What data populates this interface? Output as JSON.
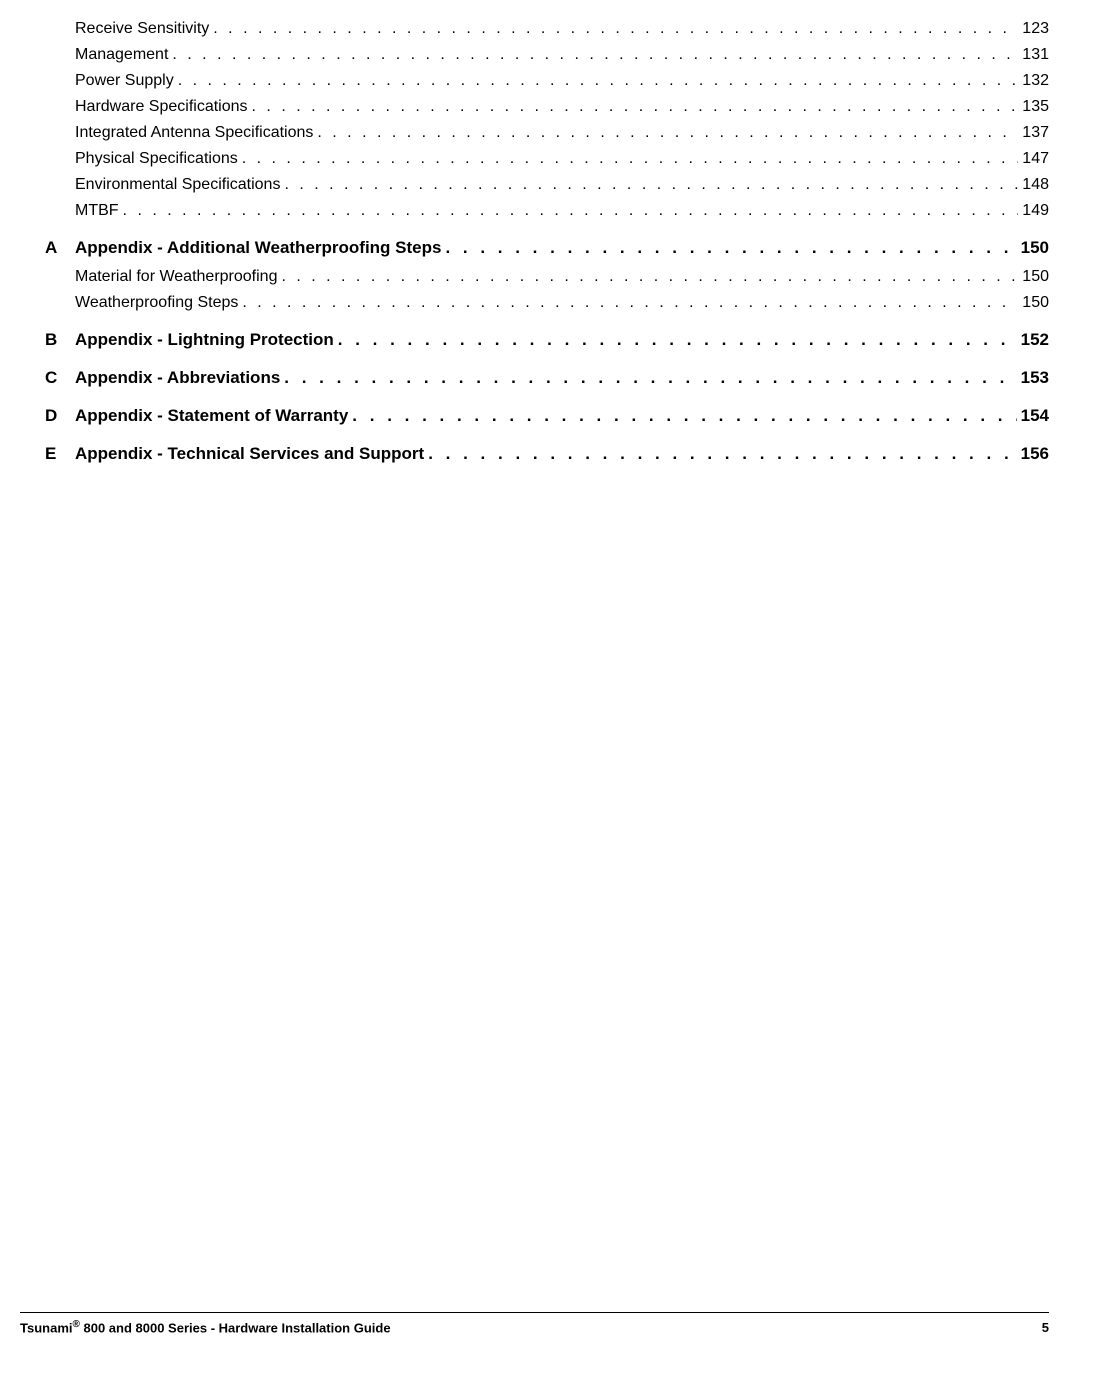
{
  "toc": {
    "sub_entries_top": [
      {
        "title": "Receive Sensitivity",
        "page": "123"
      },
      {
        "title": "Management",
        "page": "131"
      },
      {
        "title": "Power Supply",
        "page": "132"
      },
      {
        "title": "Hardware Specifications",
        "page": "135"
      },
      {
        "title": "Integrated Antenna Specifications",
        "page": "137"
      },
      {
        "title": "Physical Specifications",
        "page": "147"
      },
      {
        "title": "Environmental Specifications",
        "page": "148"
      },
      {
        "title": "MTBF",
        "page": "149"
      }
    ],
    "appendices": [
      {
        "letter": "A",
        "title": "Appendix - Additional Weatherproofing Steps",
        "page": "150",
        "subs": [
          {
            "title": "Material for Weatherproofing",
            "page": "150"
          },
          {
            "title": "Weatherproofing Steps",
            "page": "150"
          }
        ]
      },
      {
        "letter": "B",
        "title": "Appendix - Lightning Protection",
        "page": "152",
        "subs": []
      },
      {
        "letter": "C",
        "title": "Appendix - Abbreviations",
        "page": "153",
        "subs": []
      },
      {
        "letter": "D",
        "title": "Appendix - Statement of Warranty",
        "page": "154",
        "subs": []
      },
      {
        "letter": "E",
        "title": "Appendix - Technical Services and Support",
        "page": "156",
        "subs": []
      }
    ]
  },
  "footer": {
    "title_prefix": "Tsunami",
    "title_suffix": " 800 and 8000 Series - Hardware Installation Guide",
    "page_number": "5"
  },
  "style": {
    "text_color": "#000000",
    "background_color": "#ffffff",
    "sub_fontsize": 16,
    "appendix_fontsize": 17,
    "footer_fontsize": 13
  }
}
